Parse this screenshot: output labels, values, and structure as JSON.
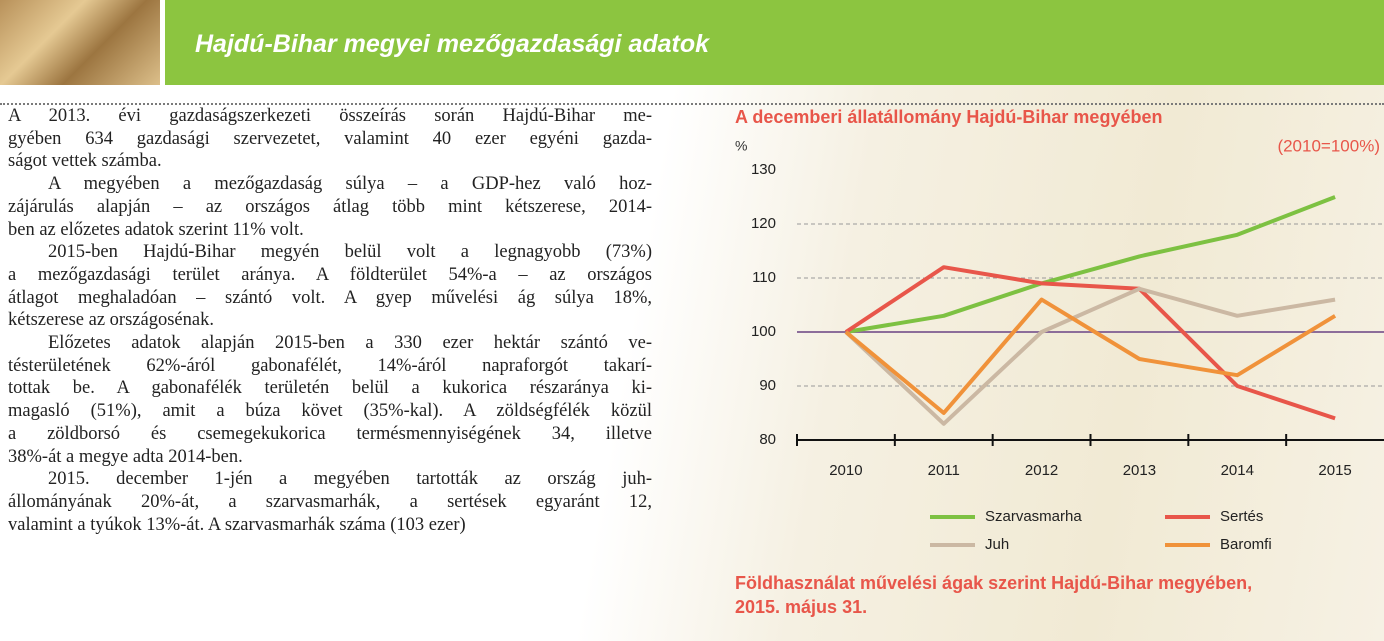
{
  "header": {
    "title": "Hajdú-Bihar megyei mezőgazdasági adatok"
  },
  "paragraphs": [
    [
      "A 2013. évi gazdaságszerkezeti összeírás során Hajdú-Bihar me-",
      "gyében 634 gazdasági szervezetet, valamint 40 ezer egyéni gazda-",
      "ságot vettek számba."
    ],
    [
      "A megyében a mezőgazdaság súlya – a GDP-hez való hoz-",
      "zájárulás alapján – az országos átlag több mint kétszerese, 2014-",
      "ben az előzetes adatok szerint 11% volt."
    ],
    [
      "2015-ben Hajdú-Bihar megyén belül volt a legnagyobb (73%)",
      "a mezőgazdasági terület aránya. A földterület 54%-a – az országos",
      "átlagot meghaladóan – szántó volt. A gyep művelési ág súlya 18%,",
      "kétszerese az országosénak."
    ],
    [
      "Előzetes adatok alapján 2015-ben a 330 ezer hektár szántó ve-",
      "tésterületének 62%-áról gabonafélét, 14%-áról napraforgót takarí-",
      "tottak be. A gabonafélék területén belül a kukorica részaránya ki-",
      "magasló (51%), amit a búza követ (35%-kal). A zöldségfélék közül",
      "a zöldborsó és csemegekukorica termésmennyiségének 34, illetve",
      "38%-át a megye adta 2014-ben."
    ],
    [
      "2015. december 1-jén a megyében tartották az ország juh-",
      "állományának 20%-át, a szarvasmarhák, a sertések egyaránt 12,",
      "valamint a tyúkok 13%-át. A szarvasmarhák száma (103 ezer)"
    ]
  ],
  "chart_data": {
    "type": "line",
    "title": "A decemberi állatállomány Hajdú-Bihar megyében",
    "subtitle": "(2010=100%)",
    "y_label": "%",
    "categories": [
      "2010",
      "2011",
      "2012",
      "2013",
      "2014",
      "2015"
    ],
    "series": [
      {
        "name": "Szarvasmarha",
        "color": "#7dc142",
        "values": [
          100,
          103,
          109,
          114,
          118,
          125
        ]
      },
      {
        "name": "Sertés",
        "color": "#e8564a",
        "values": [
          100,
          112,
          109,
          108,
          90,
          84
        ]
      },
      {
        "name": "Juh",
        "color": "#cbb8a3",
        "values": [
          100,
          83,
          100,
          108,
          103,
          106
        ]
      },
      {
        "name": "Baromfi",
        "color": "#f0923a",
        "values": [
          100,
          85,
          106,
          95,
          92,
          103
        ]
      }
    ],
    "ylim": [
      80,
      130
    ],
    "yticks": [
      80,
      90,
      100,
      110,
      120,
      130
    ],
    "reference_line": 100,
    "grid": true
  },
  "next_chart": {
    "title_lines": [
      "Földhasználat művelési ágak szerint Hajdú-Bihar megyében,",
      "2015. május 31."
    ]
  }
}
